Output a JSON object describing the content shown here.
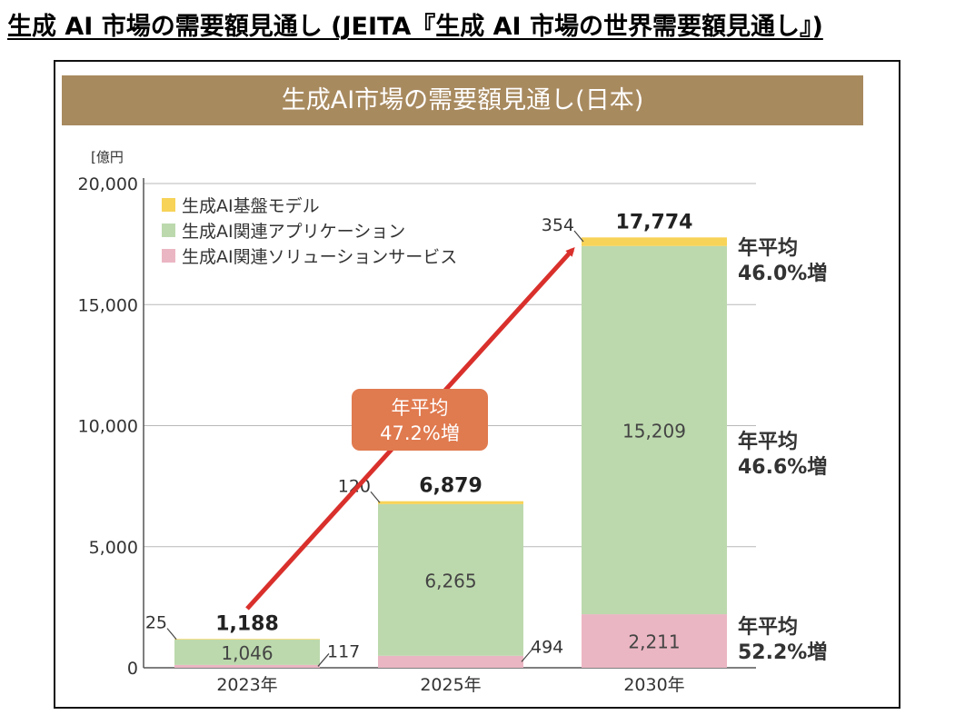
{
  "page_heading": "生成 AI 市場の需要額見通し (JEITA『生成 AI 市場の世界需要額見通し』)",
  "colors": {
    "banner": "#a88a5f",
    "base_model": "#f7d358",
    "application": "#bcd9ad",
    "solution": "#ebb6c3",
    "arrow": "#d9302c",
    "callout": "#e07a4f"
  },
  "chart_data": {
    "type": "bar",
    "stacked": true,
    "title": "生成AI市場の需要額見通し(日本)",
    "ylabel": "[億円",
    "ylim": [
      0,
      20000
    ],
    "yticks": [
      0,
      5000,
      10000,
      15000,
      20000
    ],
    "ytick_labels": [
      "0",
      "5,000",
      "10,000",
      "15,000",
      "20,000"
    ],
    "grid": true,
    "legend_position": "top-left",
    "categories": [
      "2023年",
      "2025年",
      "2030年"
    ],
    "series": [
      {
        "name": "生成AI関連ソリューションサービス",
        "color": "#ebb6c3",
        "values": [
          117,
          494,
          2211
        ],
        "labels": [
          "117",
          "494",
          "2,211"
        ]
      },
      {
        "name": "生成AI関連アプリケーション",
        "color": "#bcd9ad",
        "values": [
          1046,
          6265,
          15209
        ],
        "labels": [
          "1,046",
          "6,265",
          "15,209"
        ]
      },
      {
        "name": "生成AI基盤モデル",
        "color": "#f7d358",
        "values": [
          25,
          120,
          354
        ],
        "labels": [
          "25",
          "120",
          "354"
        ]
      }
    ],
    "legend_order": [
      "生成AI基盤モデル",
      "生成AI関連アプリケーション",
      "生成AI関連ソリューションサービス"
    ],
    "totals": [
      1188,
      6879,
      17774
    ],
    "total_labels": [
      "1,188",
      "6,879",
      "17,774"
    ],
    "annotations": {
      "overall_growth": [
        "年平均",
        "47.2%増"
      ],
      "base_model_growth": [
        "年平均",
        "46.0%増"
      ],
      "application_growth": [
        "年平均",
        "46.6%増"
      ],
      "solution_growth": [
        "年平均",
        "52.2%増"
      ]
    }
  }
}
